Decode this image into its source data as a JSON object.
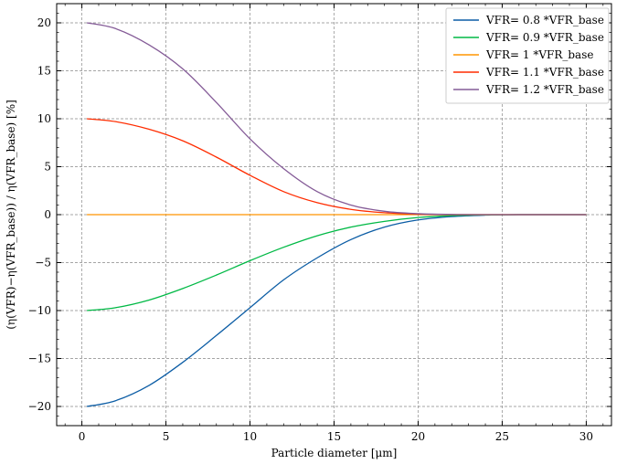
{
  "chart_data": {
    "type": "line",
    "title": "",
    "xlabel": "Particle diameter [μm]",
    "ylabel": "(η(VFR)−η(VFR_base)) / η(VFR_base) [%]",
    "xlim": [
      -1.5,
      31.5
    ],
    "ylim": [
      -22,
      22
    ],
    "xticks": [
      0,
      5,
      10,
      15,
      20,
      25,
      30
    ],
    "yticks": [
      -20,
      -15,
      -10,
      -5,
      0,
      5,
      10,
      15,
      20
    ],
    "xtick_labels": [
      "0",
      "5",
      "10",
      "15",
      "20",
      "25",
      "30"
    ],
    "ytick_labels": [
      "−20",
      "−15",
      "−10",
      "−5",
      "0",
      "5",
      "10",
      "15",
      "20"
    ],
    "grid": true,
    "legend_position": "top-right",
    "x": [
      0.3,
      2,
      4,
      6,
      8,
      10,
      12,
      14,
      16,
      18,
      20,
      22,
      24,
      26,
      28,
      30
    ],
    "series": [
      {
        "name": "VFR= 0.8 *VFR_base",
        "color": "#0c5da5",
        "values": [
          -20.0,
          -19.4,
          -17.8,
          -15.4,
          -12.6,
          -9.7,
          -6.8,
          -4.5,
          -2.6,
          -1.3,
          -0.55,
          -0.2,
          -0.05,
          0.0,
          0.0,
          0.0
        ]
      },
      {
        "name": "VFR= 0.9 *VFR_base",
        "color": "#00b945",
        "values": [
          -10.0,
          -9.7,
          -8.9,
          -7.7,
          -6.3,
          -4.8,
          -3.4,
          -2.2,
          -1.3,
          -0.7,
          -0.3,
          -0.1,
          -0.03,
          0.0,
          0.0,
          0.0
        ]
      },
      {
        "name": "VFR= 1 *VFR_base",
        "color": "#ff9500",
        "values": [
          0,
          0,
          0,
          0,
          0,
          0,
          0,
          0,
          0,
          0,
          0,
          0,
          0,
          0,
          0,
          0
        ]
      },
      {
        "name": "VFR= 1.1 *VFR_base",
        "color": "#ff2c00",
        "values": [
          10.0,
          9.7,
          8.9,
          7.7,
          6.0,
          4.1,
          2.4,
          1.25,
          0.55,
          0.2,
          0.05,
          0.0,
          0.0,
          0.0,
          0.0,
          0.0
        ]
      },
      {
        "name": "VFR= 1.2 *VFR_base",
        "color": "#845b97",
        "values": [
          20.0,
          19.4,
          17.7,
          15.2,
          11.7,
          7.9,
          4.8,
          2.4,
          1.0,
          0.35,
          0.1,
          0.02,
          0.0,
          0.0,
          0.0,
          0.0
        ]
      }
    ]
  }
}
